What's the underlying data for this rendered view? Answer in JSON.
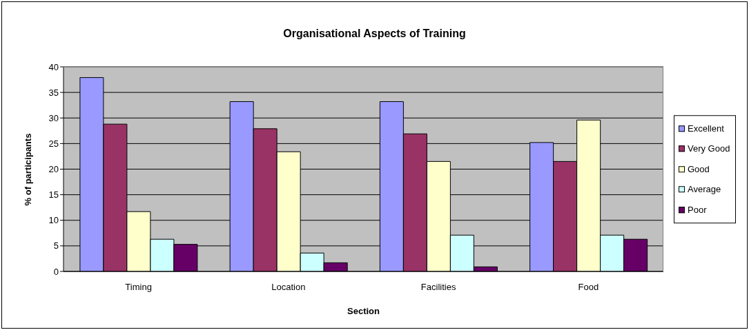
{
  "chart_data": {
    "type": "bar",
    "title": "Organisational Aspects of Training",
    "xlabel": "Section",
    "ylabel": "% of participants",
    "categories": [
      "Timing",
      "Location",
      "Facilities",
      "Food"
    ],
    "series": [
      {
        "name": "Excellent",
        "color": "#9999ff",
        "values": [
          37.9,
          33.2,
          33.2,
          25.2
        ]
      },
      {
        "name": "Very Good",
        "color": "#993366",
        "values": [
          28.8,
          27.9,
          26.9,
          21.5
        ]
      },
      {
        "name": "Good",
        "color": "#ffffcc",
        "values": [
          11.7,
          23.4,
          21.5,
          29.6
        ]
      },
      {
        "name": "Average",
        "color": "#ccffff",
        "values": [
          6.3,
          3.6,
          7.1,
          7.1
        ]
      },
      {
        "name": "Poor",
        "color": "#660066",
        "values": [
          5.3,
          1.7,
          0.9,
          6.3
        ]
      }
    ],
    "ylim": [
      0,
      40
    ],
    "yticks": [
      0,
      5,
      10,
      15,
      20,
      25,
      30,
      35,
      40
    ],
    "grid": "y",
    "legend": "right"
  }
}
